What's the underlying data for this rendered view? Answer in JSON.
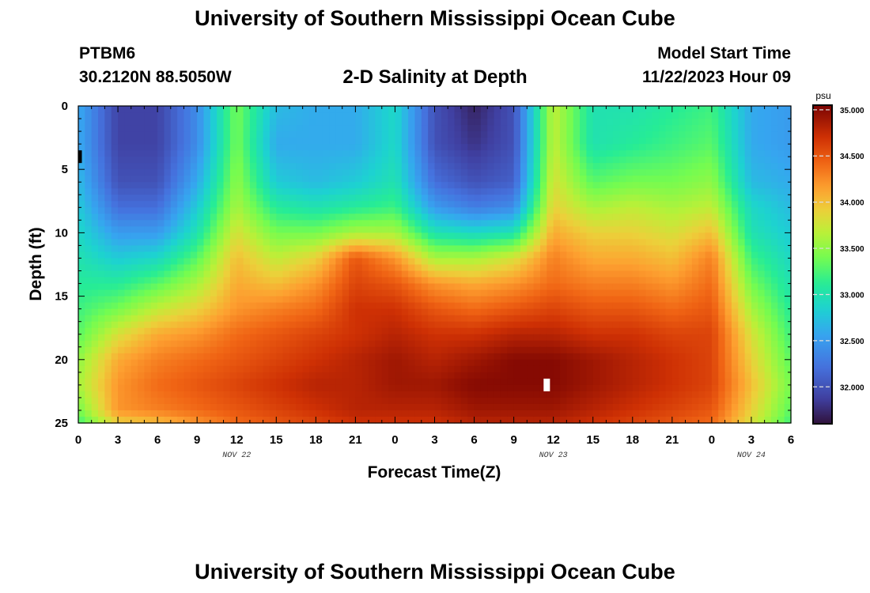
{
  "header": {
    "title": "University of Southern Mississippi Ocean Cube",
    "station": "PTBM6",
    "coords": "30.2120N  88.5050W",
    "plot_title": "2-D Salinity at Depth",
    "model_start_label": "Model Start Time",
    "model_start_value": "11/22/2023 Hour 09"
  },
  "footer": {
    "title": "University of Southern Mississippi Ocean Cube"
  },
  "chart_data": {
    "type": "heatmap",
    "title": "2-D Salinity at Depth",
    "xlabel": "Forecast Time(Z)",
    "ylabel": "Depth (ft)",
    "x_range": [
      0,
      54
    ],
    "x_ticks": [
      0,
      3,
      6,
      9,
      12,
      15,
      18,
      21,
      24,
      27,
      30,
      33,
      36,
      39,
      42,
      45,
      48,
      51,
      54
    ],
    "x_tick_labels": [
      "0",
      "3",
      "6",
      "9",
      "12",
      "15",
      "18",
      "21",
      "0",
      "3",
      "6",
      "9",
      "12",
      "15",
      "18",
      "21",
      "0",
      "3",
      "6"
    ],
    "day_labels": [
      {
        "hour": 12,
        "text": "NOV 22"
      },
      {
        "hour": 36,
        "text": "NOV 23"
      },
      {
        "hour": 51,
        "text": "NOV 24"
      }
    ],
    "y_range": [
      0,
      25
    ],
    "y_ticks": [
      0,
      5,
      10,
      15,
      20,
      25
    ],
    "y_tick_labels": [
      "0",
      "5",
      "10",
      "15",
      "20",
      "25"
    ],
    "colorbar": {
      "unit": "psu",
      "min": 31.6,
      "max": 35.05,
      "ticks": [
        32.0,
        32.5,
        33.0,
        33.5,
        34.0,
        34.5,
        35.0
      ],
      "tick_labels": [
        "32.000",
        "32.500",
        "33.000",
        "33.500",
        "34.000",
        "34.500",
        "35.000"
      ]
    },
    "grid_hours": [
      0,
      3,
      6,
      9,
      12,
      15,
      18,
      21,
      24,
      27,
      30,
      33,
      36,
      39,
      42,
      45,
      48,
      51,
      54
    ],
    "grid_depths": [
      0,
      3,
      6,
      8,
      10,
      12,
      14,
      16,
      18,
      20,
      22,
      24,
      25
    ],
    "values": [
      [
        32.6,
        31.9,
        31.9,
        32.4,
        33.4,
        32.7,
        32.6,
        32.6,
        32.9,
        32.0,
        31.7,
        32.0,
        33.7,
        33.0,
        33.0,
        33.1,
        33.2,
        32.6,
        32.5
      ],
      [
        32.6,
        31.9,
        31.9,
        32.4,
        33.4,
        32.6,
        32.6,
        32.6,
        32.9,
        32.0,
        31.8,
        32.0,
        33.7,
        33.0,
        33.1,
        33.2,
        33.3,
        32.6,
        32.5
      ],
      [
        32.7,
        32.0,
        32.0,
        32.6,
        33.5,
        32.8,
        32.7,
        32.8,
        33.0,
        32.2,
        32.0,
        32.1,
        33.8,
        33.3,
        33.4,
        33.4,
        33.5,
        32.7,
        32.6
      ],
      [
        32.8,
        32.2,
        32.2,
        32.8,
        33.6,
        33.1,
        33.0,
        33.1,
        33.2,
        32.5,
        32.3,
        32.4,
        33.9,
        33.6,
        33.7,
        33.6,
        33.7,
        32.9,
        32.7
      ],
      [
        32.9,
        32.5,
        32.5,
        33.0,
        33.8,
        33.4,
        33.4,
        33.6,
        33.6,
        33.0,
        32.9,
        33.0,
        34.1,
        33.9,
        33.9,
        33.8,
        34.0,
        33.0,
        32.8
      ],
      [
        33.0,
        32.8,
        32.9,
        33.3,
        34.0,
        33.7,
        33.9,
        34.5,
        34.2,
        33.6,
        33.6,
        33.8,
        34.3,
        34.1,
        34.1,
        34.0,
        34.3,
        33.2,
        32.9
      ],
      [
        33.1,
        33.1,
        33.3,
        33.6,
        34.1,
        34.0,
        34.2,
        34.6,
        34.5,
        34.2,
        34.1,
        34.2,
        34.4,
        34.3,
        34.3,
        34.2,
        34.4,
        33.4,
        33.0
      ],
      [
        33.2,
        33.4,
        33.7,
        33.9,
        34.2,
        34.3,
        34.4,
        34.7,
        34.7,
        34.5,
        34.4,
        34.5,
        34.6,
        34.5,
        34.5,
        34.4,
        34.5,
        33.6,
        33.1
      ],
      [
        33.3,
        33.8,
        34.1,
        34.2,
        34.4,
        34.5,
        34.6,
        34.7,
        34.8,
        34.7,
        34.7,
        34.8,
        34.8,
        34.7,
        34.7,
        34.6,
        34.6,
        33.8,
        33.2
      ],
      [
        33.5,
        34.1,
        34.3,
        34.4,
        34.5,
        34.6,
        34.7,
        34.8,
        34.9,
        34.8,
        34.9,
        35.0,
        35.0,
        34.9,
        34.8,
        34.7,
        34.6,
        33.9,
        33.3
      ],
      [
        33.6,
        34.2,
        34.4,
        34.5,
        34.6,
        34.7,
        34.8,
        34.8,
        34.9,
        34.9,
        35.0,
        35.0,
        35.0,
        34.9,
        34.8,
        34.7,
        34.6,
        34.0,
        33.4
      ],
      [
        33.4,
        34.2,
        34.3,
        34.4,
        34.5,
        34.6,
        34.7,
        34.8,
        34.8,
        34.8,
        34.9,
        34.9,
        34.9,
        34.8,
        34.7,
        34.6,
        34.5,
        33.9,
        33.3
      ],
      [
        33.2,
        33.9,
        34.0,
        34.2,
        34.4,
        34.5,
        34.6,
        34.7,
        34.7,
        34.7,
        34.8,
        34.8,
        34.8,
        34.7,
        34.6,
        34.5,
        34.4,
        33.8,
        33.2
      ]
    ],
    "markers": [
      {
        "type": "white-rectangle",
        "hour": 35.5,
        "depth": 22
      },
      {
        "type": "black-tick",
        "hour": 0,
        "depth": 4
      }
    ]
  }
}
